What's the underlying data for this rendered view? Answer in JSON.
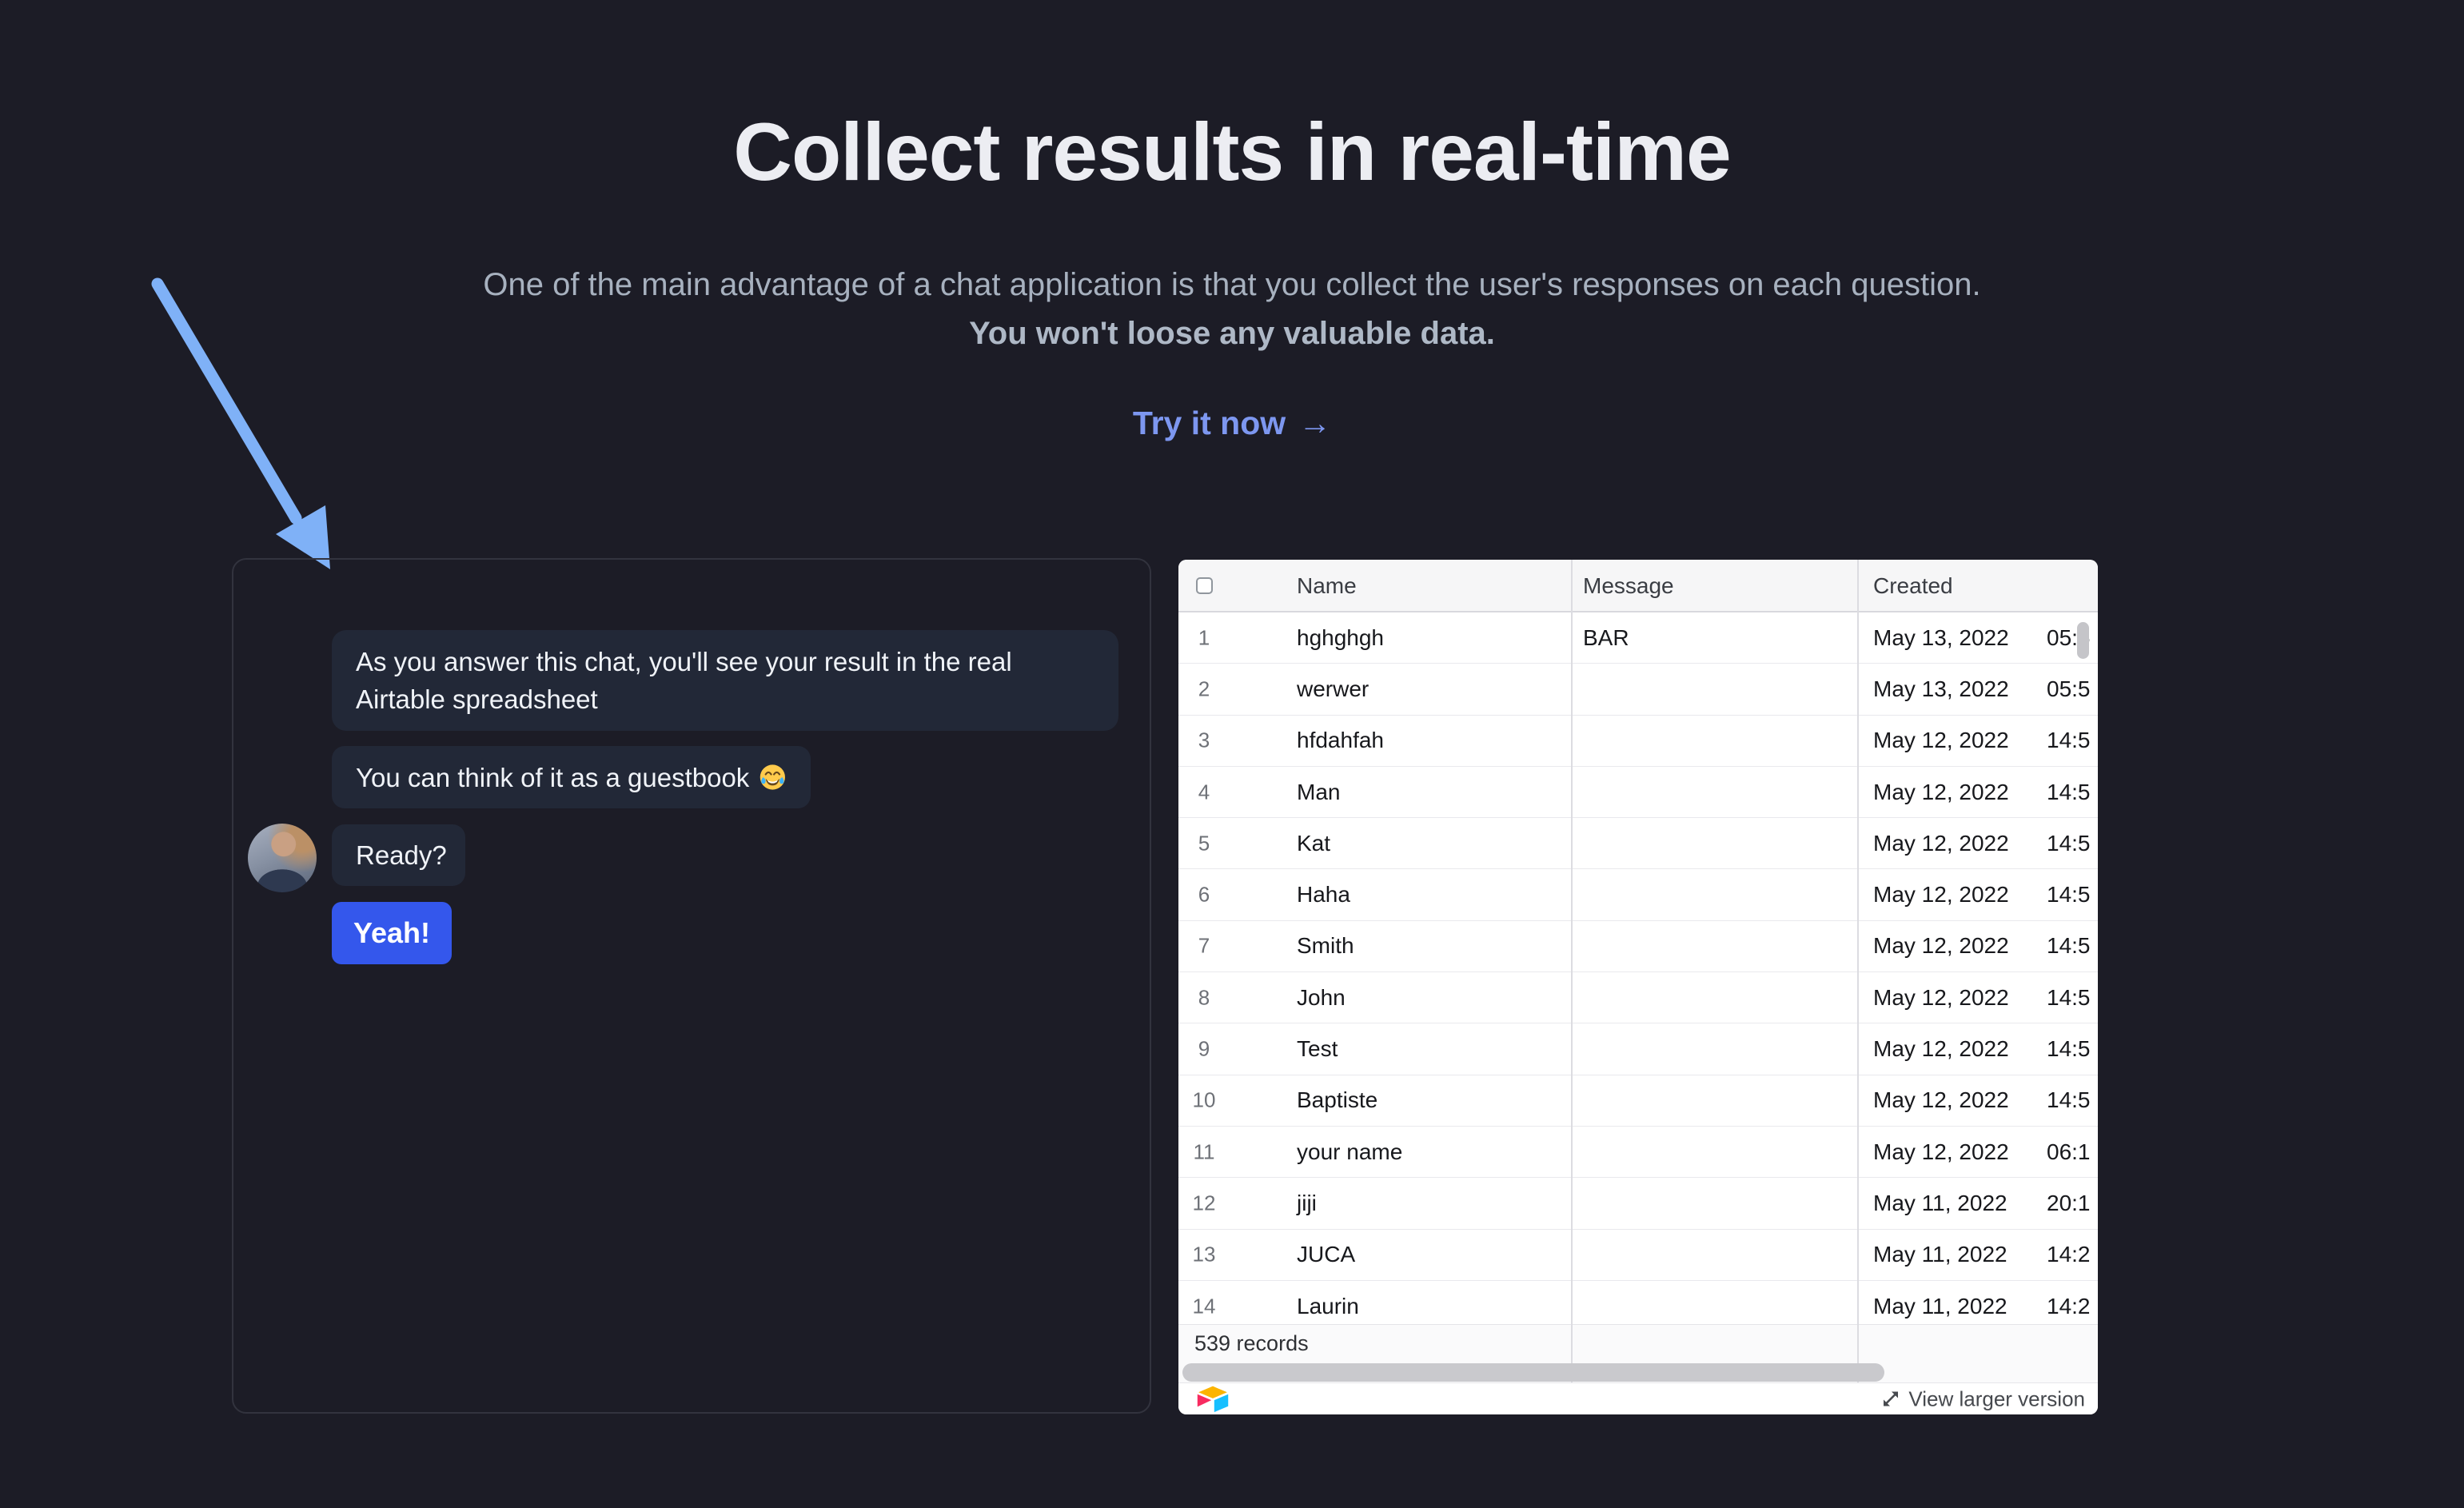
{
  "page": {
    "background": "#1c1c26"
  },
  "hero": {
    "title": "Collect results in real-time",
    "subtitle_line1": "One of the main advantage of a chat application is that you collect the user's responses on each question.",
    "subtitle_line2": "You won't loose any valuable data.",
    "cta": {
      "label": "Try it now",
      "arrow_glyph": "→"
    }
  },
  "chat": {
    "bubbles": [
      {
        "text": "As you answer this chat, you'll see your result in the real Airtable spreadsheet"
      },
      {
        "text": "You can think of it as a guestbook",
        "emoji_icon": "laughing-tears-emoji"
      },
      {
        "text": "Ready?"
      }
    ],
    "reply_button": "Yeah!",
    "avatar_icon": "user-avatar-photo"
  },
  "spreadsheet": {
    "columns": {
      "name": "Name",
      "message": "Message",
      "created": "Created"
    },
    "rows": [
      {
        "num": "1",
        "name": "hghghgh",
        "message": "BAR",
        "date": "May 13, 2022",
        "time": "05:5"
      },
      {
        "num": "2",
        "name": "werwer",
        "message": "",
        "date": "May 13, 2022",
        "time": "05:5"
      },
      {
        "num": "3",
        "name": "hfdahfah",
        "message": "",
        "date": "May 12, 2022",
        "time": "14:5"
      },
      {
        "num": "4",
        "name": "Man",
        "message": "",
        "date": "May 12, 2022",
        "time": "14:5"
      },
      {
        "num": "5",
        "name": "Kat",
        "message": "",
        "date": "May 12, 2022",
        "time": "14:5"
      },
      {
        "num": "6",
        "name": "Haha",
        "message": "",
        "date": "May 12, 2022",
        "time": "14:5"
      },
      {
        "num": "7",
        "name": "Smith",
        "message": "",
        "date": "May 12, 2022",
        "time": "14:5"
      },
      {
        "num": "8",
        "name": "John",
        "message": "",
        "date": "May 12, 2022",
        "time": "14:5"
      },
      {
        "num": "9",
        "name": "Test",
        "message": "",
        "date": "May 12, 2022",
        "time": "14:5"
      },
      {
        "num": "10",
        "name": "Baptiste",
        "message": "",
        "date": "May 12, 2022",
        "time": "14:5"
      },
      {
        "num": "11",
        "name": "your name",
        "message": "",
        "date": "May 12, 2022",
        "time": "06:1"
      },
      {
        "num": "12",
        "name": "jiji",
        "message": "",
        "date": "May 11, 2022",
        "time": "20:1"
      },
      {
        "num": "13",
        "name": "JUCA",
        "message": "",
        "date": "May 11, 2022",
        "time": "14:2"
      },
      {
        "num": "14",
        "name": "Laurin",
        "message": "",
        "date": "May 11, 2022",
        "time": "14:2"
      }
    ],
    "record_count": "539 records",
    "footer": {
      "logo_icon": "airtable-logo",
      "expand_icon": "expand-diagonal-arrows",
      "view_larger_label": "View larger version"
    }
  },
  "colors": {
    "page_bg": "#1c1c26",
    "heading_text": "#ecedf2",
    "subtitle_text": "#a7b1bf",
    "cta_blue": "#7d97f0",
    "pointer_arrow_blue": "#7fb1f7",
    "bubble_bg": "#222837",
    "bubble_text": "#f0f3f8",
    "reply_button_blue": "#3457ec",
    "panel_border": "#32333e",
    "table_bg": "#ffffff",
    "table_header_bg": "#f6f6f7",
    "grid_line": "#dcdce1",
    "row_line": "#e9e9ed",
    "row_number_gray": "#6e7177",
    "scrollbar_gray": "#c9c9cd",
    "airtable_yellow": "#FCB400",
    "airtable_blue": "#18BFFF",
    "airtable_red": "#F82B60"
  }
}
